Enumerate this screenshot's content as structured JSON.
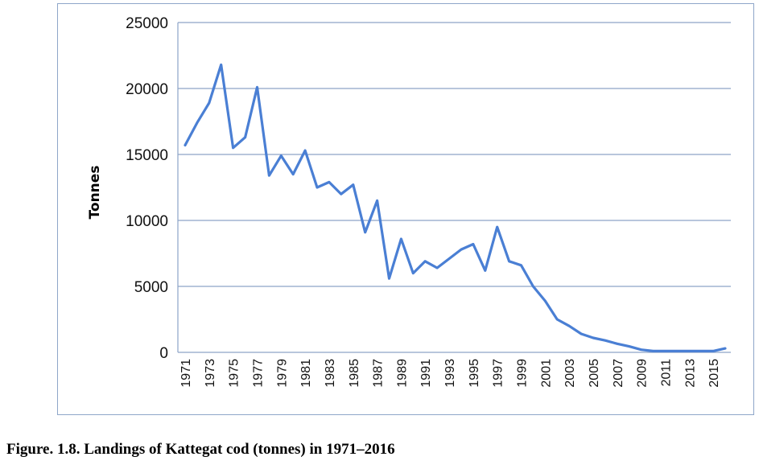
{
  "caption": "Figure. 1.8. Landings of Kattegat cod (tonnes) in 1971–2016",
  "chart_data": {
    "type": "line",
    "title": "",
    "xlabel": "",
    "ylabel": "Tonnes",
    "ylim": [
      0,
      25000
    ],
    "yticks": [
      "0",
      "5000",
      "10000",
      "15000",
      "20000",
      "25000"
    ],
    "grid": true,
    "line_color": "#4a7fd4",
    "x": [
      1971,
      1972,
      1973,
      1974,
      1975,
      1976,
      1977,
      1978,
      1979,
      1980,
      1981,
      1982,
      1983,
      1984,
      1985,
      1986,
      1987,
      1988,
      1989,
      1990,
      1991,
      1992,
      1993,
      1994,
      1995,
      1996,
      1997,
      1998,
      1999,
      2000,
      2001,
      2002,
      2003,
      2004,
      2005,
      2006,
      2007,
      2008,
      2009,
      2010,
      2011,
      2012,
      2013,
      2014,
      2015,
      2016
    ],
    "xtick_labels": [
      "1971",
      "1973",
      "1975",
      "1977",
      "1979",
      "1981",
      "1983",
      "1985",
      "1987",
      "1989",
      "1991",
      "1993",
      "1995",
      "1997",
      "1999",
      "2001",
      "2003",
      "2005",
      "2007",
      "2009",
      "2011",
      "2013",
      "2015"
    ],
    "series": [
      {
        "values": [
          15700,
          17400,
          18900,
          21800,
          15500,
          16300,
          20100,
          13400,
          14900,
          13500,
          15300,
          12500,
          12900,
          12000,
          12700,
          9100,
          11500,
          5600,
          8600,
          6000,
          6900,
          6400,
          7100,
          7800,
          8200,
          6200,
          9500,
          6900,
          6600,
          5000,
          3900,
          2500,
          2000,
          1400,
          1100,
          900,
          650,
          450,
          200,
          100,
          100,
          100,
          100,
          100,
          100,
          300
        ]
      }
    ]
  }
}
